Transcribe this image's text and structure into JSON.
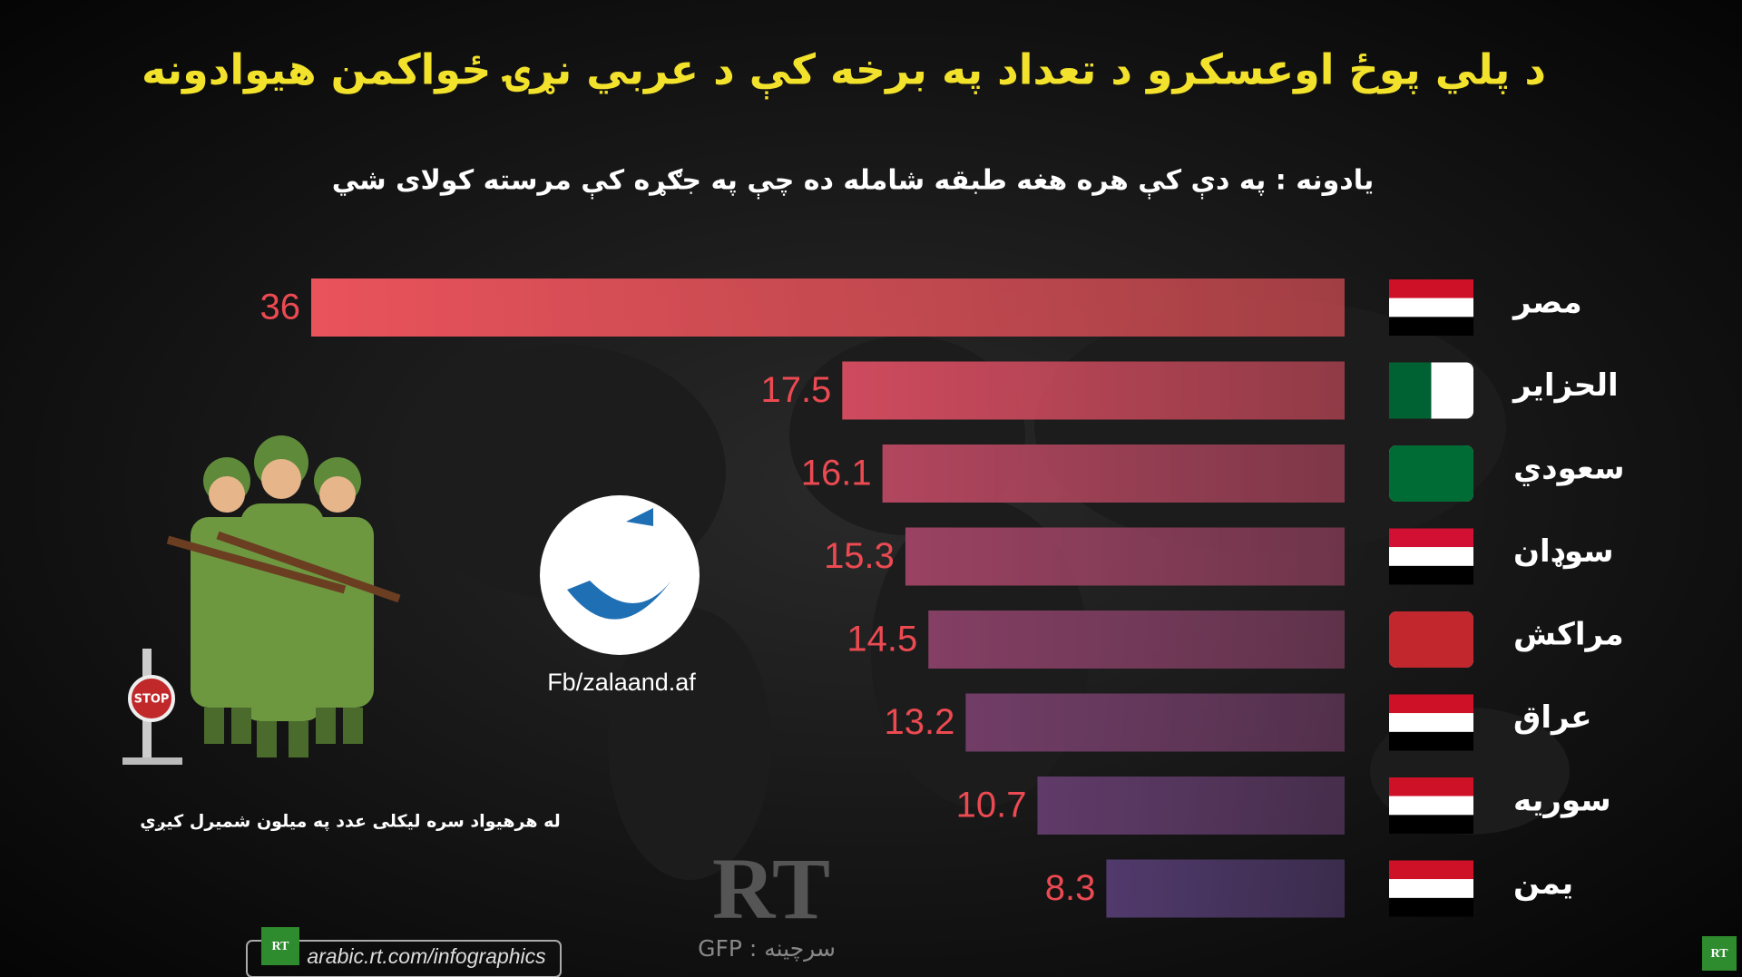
{
  "chart_data": {
    "type": "bar",
    "orientation": "horizontal",
    "title": "د پلي پوځ اوعسکرو د تعداد په برخه کې د عربي نړۍ ځواکمن هیوادونه",
    "subtitle": "یادونه : په دې کې هره هغه طبقه شامله ده چې په جګړه کې مرسته کولای شي",
    "categories": [
      "مصر",
      "الحزاير",
      "سعودي",
      "سوډان",
      "مراکش",
      "عراق",
      "سوریه",
      "یمن"
    ],
    "values": [
      36,
      17.5,
      16.1,
      15.3,
      14.5,
      13.2,
      10.7,
      8.3
    ],
    "colors": [
      "#ea535b",
      "#cf4b5e",
      "#b2465f",
      "#9a4262",
      "#843f64",
      "#713d67",
      "#603b69",
      "#513a6c"
    ],
    "note": "له هرهیواد سره لیکلی عدد په میلون شمیرل کیږي",
    "watermark": "Fb/zalaand.af",
    "logo_text": "RT",
    "source": "GFP : سرچینه",
    "website": "arabic.rt.com/infographics"
  }
}
